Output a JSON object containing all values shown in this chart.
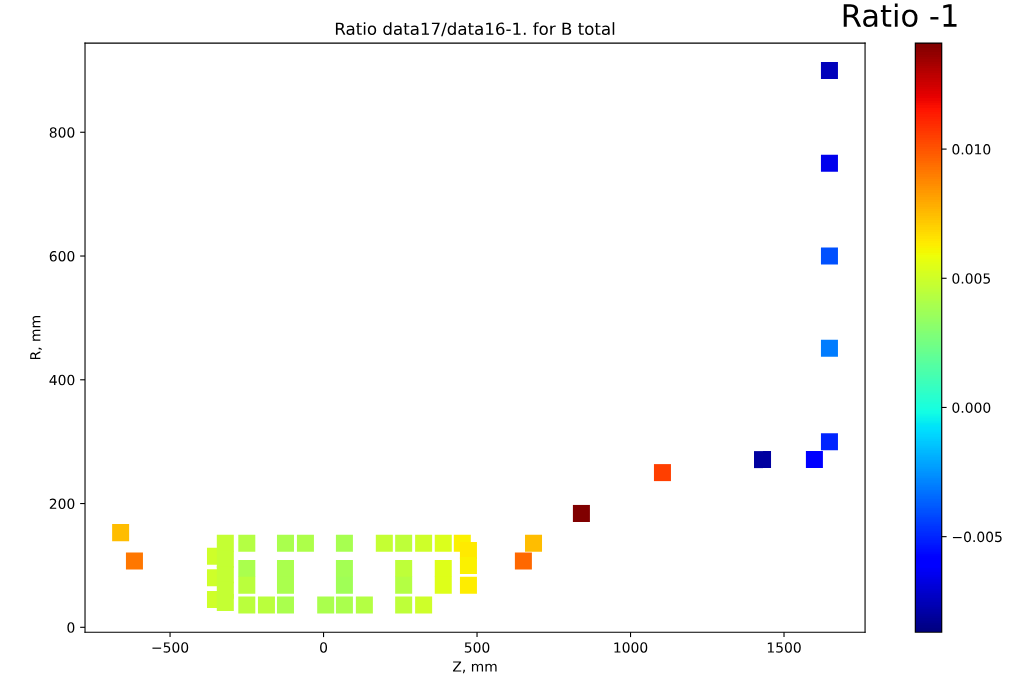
{
  "chart_data": {
    "type": "scatter",
    "title": "Ratio -1",
    "subtitle": "Ratio data17/data16-1. for B total",
    "xlabel": "Z, mm",
    "ylabel": "R, mm",
    "marker": "square",
    "grid": false,
    "legend": false,
    "x": [
      1648,
      1648,
      1648,
      1648,
      1648,
      1599,
      1430,
      1104,
      840,
      684,
      651,
      -661,
      -616,
      -352,
      -352,
      -352,
      -320,
      -320,
      -320,
      -320,
      -320,
      -250,
      -250,
      -250,
      -250,
      -186,
      -124,
      -124,
      -124,
      -124,
      -59,
      7,
      68,
      68,
      68,
      68,
      133,
      198,
      261,
      261,
      261,
      261,
      326,
      326,
      390,
      390,
      390,
      452,
      472,
      472,
      472
    ],
    "values": [
      900,
      750,
      600,
      451,
      300,
      271,
      271,
      250,
      184,
      136,
      107,
      153,
      107,
      115,
      80,
      45,
      136,
      110,
      85,
      60,
      40,
      136,
      95,
      68,
      36,
      36,
      136,
      95,
      68,
      36,
      136,
      36,
      136,
      95,
      68,
      36,
      36,
      136,
      136,
      95,
      68,
      36,
      136,
      36,
      136,
      95,
      68,
      136,
      124,
      100,
      68
    ],
    "cvalues": [
      -0.0075,
      -0.0065,
      -0.004,
      -0.003,
      -0.005,
      -0.006,
      -0.008,
      0.0105,
      0.0141,
      0.0075,
      0.0095,
      0.0075,
      0.0092,
      0.005,
      0.005,
      0.005,
      0.0047,
      0.0047,
      0.0047,
      0.0047,
      0.0047,
      0.0043,
      0.004,
      0.0044,
      0.0044,
      0.0044,
      0.004,
      0.004,
      0.004,
      0.004,
      0.0041,
      0.004,
      0.0039,
      0.0038,
      0.0037,
      0.004,
      0.0043,
      0.0047,
      0.0045,
      0.0045,
      0.0043,
      0.0045,
      0.005,
      0.005,
      0.0053,
      0.0054,
      0.0054,
      0.0062,
      0.0064,
      0.0062,
      0.0063
    ],
    "xlim": [
      -777,
      1764
    ],
    "ylim": [
      -8,
      944
    ],
    "xticks": [
      {
        "value": -500,
        "label": "−500"
      },
      0,
      500,
      1000,
      1500
    ],
    "yticks": [
      0,
      200,
      400,
      600,
      800
    ],
    "clim": [
      -0.0087,
      0.0141
    ],
    "cticks": [
      {
        "value": -0.005,
        "label": "−0.005"
      },
      {
        "value": 0.0,
        "label": "0.000"
      },
      {
        "value": 0.005,
        "label": "0.005"
      },
      {
        "value": 0.01,
        "label": "0.010"
      }
    ]
  }
}
